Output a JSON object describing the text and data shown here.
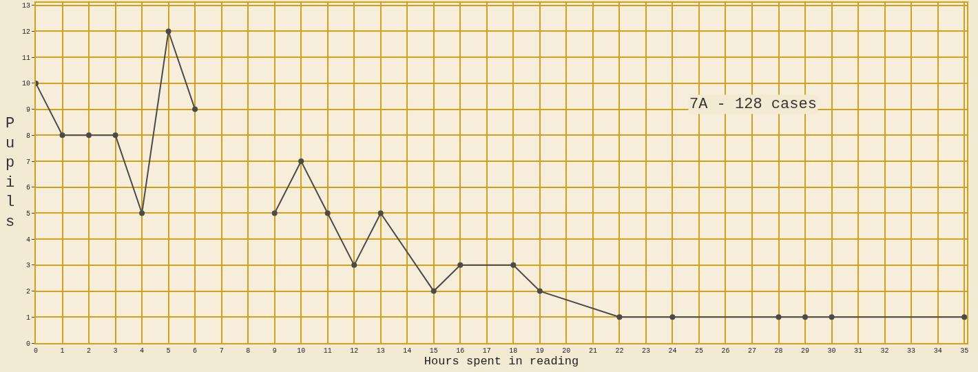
{
  "chart_data": {
    "type": "line",
    "xlabel": "Hours spent in reading",
    "ylabel": "Pupils",
    "annotations": [
      "7A - 128 cases"
    ],
    "x": [
      0,
      1,
      2,
      3,
      4,
      5,
      6,
      7,
      8,
      9,
      10,
      11,
      12,
      13,
      15,
      16,
      18,
      19,
      22,
      24,
      28,
      29,
      30,
      35
    ],
    "series": [
      {
        "color": "#4a4a4a",
        "values": [
          10,
          8,
          8,
          8,
          5,
          12,
          9,
          null,
          null,
          5,
          7,
          5,
          3,
          5,
          2,
          3,
          3,
          2,
          1,
          1,
          1,
          1,
          1,
          1
        ]
      }
    ],
    "xlim": [
      0,
      35.1
    ],
    "xticks": [
      0,
      1,
      2,
      3,
      4,
      5,
      6,
      7,
      8,
      9,
      10,
      11,
      12,
      13,
      14,
      15,
      16,
      17,
      18,
      19,
      20,
      21,
      22,
      23,
      24,
      25,
      26,
      27,
      28,
      29,
      30,
      31,
      32,
      33,
      34,
      35
    ],
    "ylim": [
      0,
      13.1
    ],
    "yticks": [
      0,
      1,
      2,
      3,
      4,
      5,
      6,
      7,
      8,
      9,
      10,
      11,
      12,
      13
    ],
    "grid": true,
    "marker": "circle",
    "line_style": "solid"
  }
}
